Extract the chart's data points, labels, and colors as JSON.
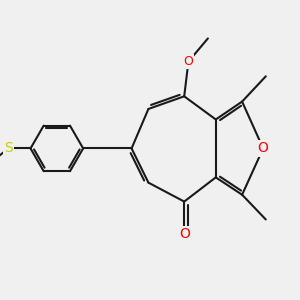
{
  "bg_color": "#f0f0f0",
  "bond_color": "#1a1a1a",
  "o_color": "#ff0000",
  "s_color": "#cccc00",
  "lw": 1.5,
  "dbo": 0.055,
  "fs": 9,
  "xlim": [
    -1.5,
    4.2
  ],
  "ylim": [
    -0.8,
    4.2
  ],
  "figsize": [
    3.0,
    3.0
  ],
  "dpi": 100
}
